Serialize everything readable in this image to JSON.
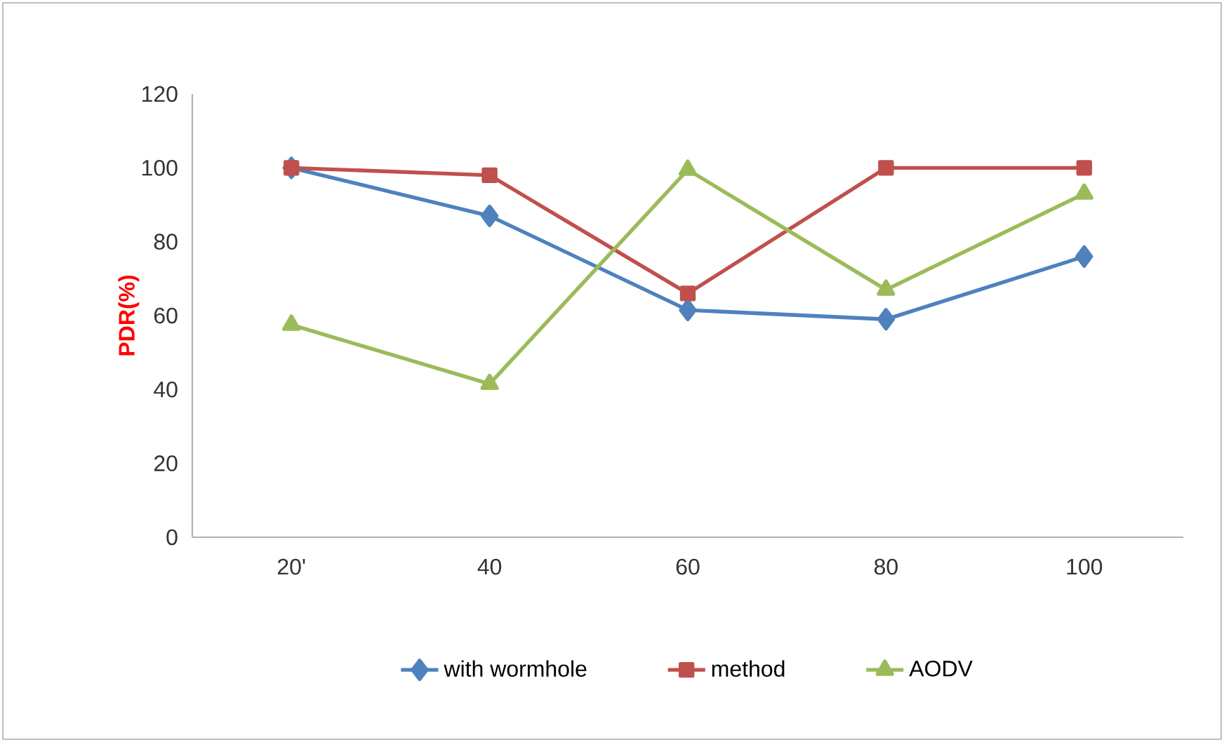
{
  "chart_data": {
    "type": "line",
    "ylabel": "PDR(%)",
    "categories": [
      "20'",
      "40",
      "60",
      "80",
      "100"
    ],
    "series": [
      {
        "name": "with wormhole",
        "color": "#4f81bd",
        "marker": "diamond",
        "values": [
          100,
          87,
          61.5,
          59,
          76
        ]
      },
      {
        "name": "method",
        "color": "#c0504d",
        "marker": "square",
        "values": [
          100,
          98,
          66,
          100,
          100
        ]
      },
      {
        "name": "AODV",
        "color": "#9bbb59",
        "marker": "triangle",
        "values": [
          57.5,
          41.5,
          99.5,
          67,
          93
        ]
      }
    ],
    "ylim": [
      0,
      120
    ],
    "yticks": [
      0,
      20,
      40,
      60,
      80,
      100,
      120
    ],
    "grid": false,
    "legend": "bottom"
  }
}
